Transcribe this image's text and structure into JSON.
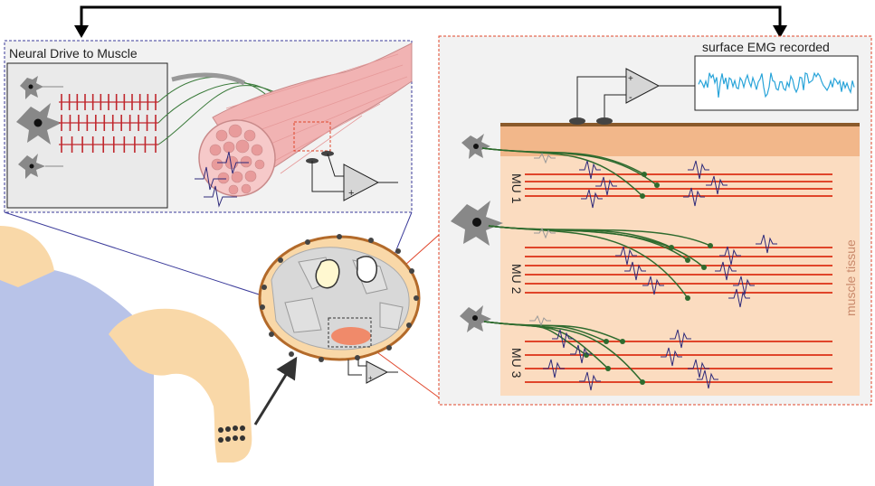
{
  "labels": {
    "neural_drive": "Neural Drive to Muscle",
    "surface_emg": "surface EMG recorded",
    "muscle_tissue": "muscle tissue",
    "mu1": "MU 1",
    "mu2": "MU 2",
    "mu3": "MU 3"
  },
  "amplifier": {
    "plus": "+",
    "minus": "-"
  },
  "colors": {
    "skin": "#f9d8a8",
    "shirt": "#b8c3e8",
    "fiber": "#e0452a",
    "axon": "#2e6b2e",
    "spike": "#c0272d",
    "muap": "#2e2a7a",
    "emg": "#29a4d9",
    "neural_box": "#3b3b9a",
    "emg_box": "#e0452a",
    "muscle": "#f1b3b3"
  },
  "spike_trains": {
    "row1_spikes": 13,
    "row2_spikes": 12,
    "row3_spikes": 10
  },
  "motor_units": {
    "mu1_fibers": 4,
    "mu2_fibers": 6,
    "mu3_fibers": 4
  }
}
